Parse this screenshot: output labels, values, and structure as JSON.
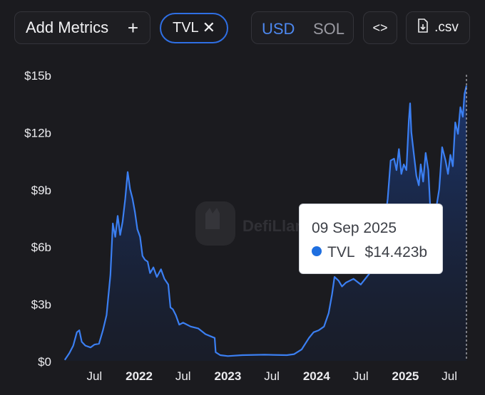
{
  "toolbar": {
    "add_metrics_label": "Add Metrics",
    "add_icon": "plus-icon",
    "metric_chip_label": "TVL",
    "metric_chip_close_icon": "close-icon",
    "currency_options": [
      "USD",
      "SOL"
    ],
    "currency_selected": "USD",
    "embed_label": "<>",
    "csv_label": ".csv",
    "csv_icon": "file-download-icon"
  },
  "watermark": {
    "text": "DefiLlama",
    "icon": "llama-logo-icon"
  },
  "tooltip": {
    "date": "09 Sep 2025",
    "series_label": "TVL",
    "value": "$14.423b"
  },
  "colors": {
    "accent": "#2f6fe4",
    "line": "#3b7ff2",
    "background": "#1b1b1f"
  },
  "chart_data": {
    "type": "area",
    "series": [
      {
        "name": "TVL",
        "points": [
          [
            "2021-03-01",
            0.05
          ],
          [
            "2021-03-20",
            0.4
          ],
          [
            "2021-04-05",
            0.8
          ],
          [
            "2021-04-20",
            1.5
          ],
          [
            "2021-04-30",
            1.6
          ],
          [
            "2021-05-10",
            1.0
          ],
          [
            "2021-05-25",
            0.8
          ],
          [
            "2021-06-15",
            0.7
          ],
          [
            "2021-07-01",
            0.85
          ],
          [
            "2021-07-20",
            0.9
          ],
          [
            "2021-08-05",
            1.6
          ],
          [
            "2021-08-20",
            2.4
          ],
          [
            "2021-09-05",
            4.5
          ],
          [
            "2021-09-15",
            7.2
          ],
          [
            "2021-09-25",
            6.5
          ],
          [
            "2021-10-05",
            7.6
          ],
          [
            "2021-10-15",
            6.6
          ],
          [
            "2021-10-25",
            7.3
          ],
          [
            "2021-11-05",
            8.5
          ],
          [
            "2021-11-15",
            9.9
          ],
          [
            "2021-11-25",
            9.0
          ],
          [
            "2021-12-05",
            8.5
          ],
          [
            "2021-12-15",
            7.8
          ],
          [
            "2021-12-25",
            6.9
          ],
          [
            "2022-01-05",
            6.5
          ],
          [
            "2022-01-15",
            5.5
          ],
          [
            "2022-01-25",
            5.3
          ],
          [
            "2022-02-05",
            5.2
          ],
          [
            "2022-02-15",
            4.6
          ],
          [
            "2022-03-01",
            4.9
          ],
          [
            "2022-03-15",
            4.4
          ],
          [
            "2022-04-01",
            4.8
          ],
          [
            "2022-04-15",
            4.3
          ],
          [
            "2022-05-01",
            4.0
          ],
          [
            "2022-05-10",
            2.8
          ],
          [
            "2022-05-20",
            2.7
          ],
          [
            "2022-06-01",
            2.4
          ],
          [
            "2022-06-15",
            1.9
          ],
          [
            "2022-07-01",
            2.0
          ],
          [
            "2022-08-01",
            1.8
          ],
          [
            "2022-09-01",
            1.7
          ],
          [
            "2022-10-01",
            1.4
          ],
          [
            "2022-10-20",
            1.3
          ],
          [
            "2022-11-08",
            1.2
          ],
          [
            "2022-11-12",
            0.45
          ],
          [
            "2022-12-01",
            0.3
          ],
          [
            "2023-01-01",
            0.25
          ],
          [
            "2023-03-01",
            0.3
          ],
          [
            "2023-06-01",
            0.32
          ],
          [
            "2023-09-01",
            0.3
          ],
          [
            "2023-10-01",
            0.35
          ],
          [
            "2023-11-01",
            0.6
          ],
          [
            "2023-12-01",
            1.2
          ],
          [
            "2023-12-20",
            1.5
          ],
          [
            "2024-01-10",
            1.6
          ],
          [
            "2024-02-01",
            1.8
          ],
          [
            "2024-02-20",
            2.5
          ],
          [
            "2024-03-05",
            3.5
          ],
          [
            "2024-03-15",
            4.4
          ],
          [
            "2024-04-01",
            4.2
          ],
          [
            "2024-04-15",
            3.9
          ],
          [
            "2024-05-01",
            4.1
          ],
          [
            "2024-06-01",
            4.3
          ],
          [
            "2024-07-01",
            4.0
          ],
          [
            "2024-08-01",
            4.5
          ],
          [
            "2024-09-01",
            5.0
          ],
          [
            "2024-10-01",
            6.5
          ],
          [
            "2024-10-20",
            8.5
          ],
          [
            "2024-11-01",
            10.5
          ],
          [
            "2024-11-15",
            10.6
          ],
          [
            "2024-11-25",
            10.0
          ],
          [
            "2024-12-05",
            11.1
          ],
          [
            "2024-12-15",
            9.8
          ],
          [
            "2024-12-25",
            10.3
          ],
          [
            "2025-01-05",
            10.0
          ],
          [
            "2025-01-15",
            12.6
          ],
          [
            "2025-01-20",
            13.5
          ],
          [
            "2025-01-25",
            12.0
          ],
          [
            "2025-02-05",
            10.8
          ],
          [
            "2025-02-15",
            9.7
          ],
          [
            "2025-02-25",
            9.2
          ],
          [
            "2025-03-05",
            10.3
          ],
          [
            "2025-03-15",
            9.4
          ],
          [
            "2025-03-25",
            10.9
          ],
          [
            "2025-04-05",
            10.0
          ],
          [
            "2025-04-15",
            7.6
          ],
          [
            "2025-04-25",
            7.4
          ],
          [
            "2025-05-05",
            7.8
          ],
          [
            "2025-05-20",
            9.0
          ],
          [
            "2025-06-01",
            11.2
          ],
          [
            "2025-06-15",
            10.5
          ],
          [
            "2025-06-25",
            9.8
          ],
          [
            "2025-07-05",
            10.8
          ],
          [
            "2025-07-15",
            10.2
          ],
          [
            "2025-07-25",
            12.5
          ],
          [
            "2025-08-05",
            11.9
          ],
          [
            "2025-08-15",
            13.3
          ],
          [
            "2025-08-25",
            12.8
          ],
          [
            "2025-09-01",
            14.0
          ],
          [
            "2025-09-09",
            14.423
          ]
        ]
      }
    ],
    "y_ticks": [
      "$0",
      "$3b",
      "$6b",
      "$9b",
      "$12b",
      "$15b"
    ],
    "y_tick_values": [
      0,
      3,
      6,
      9,
      12,
      15
    ],
    "ylim": [
      0,
      15
    ],
    "xlim": [
      "2021-02-15",
      "2025-09-09"
    ],
    "x_ticks": [
      {
        "date": "2021-07-01",
        "label": "Jul",
        "bold": false
      },
      {
        "date": "2022-01-01",
        "label": "2022",
        "bold": true
      },
      {
        "date": "2022-07-01",
        "label": "Jul",
        "bold": false
      },
      {
        "date": "2023-01-01",
        "label": "2023",
        "bold": true
      },
      {
        "date": "2023-07-01",
        "label": "Jul",
        "bold": false
      },
      {
        "date": "2024-01-01",
        "label": "2024",
        "bold": true
      },
      {
        "date": "2024-07-01",
        "label": "Jul",
        "bold": false
      },
      {
        "date": "2025-01-01",
        "label": "2025",
        "bold": true
      },
      {
        "date": "2025-07-01",
        "label": "Jul",
        "bold": false
      }
    ],
    "grid": false,
    "hover_date": "2025-09-09"
  }
}
